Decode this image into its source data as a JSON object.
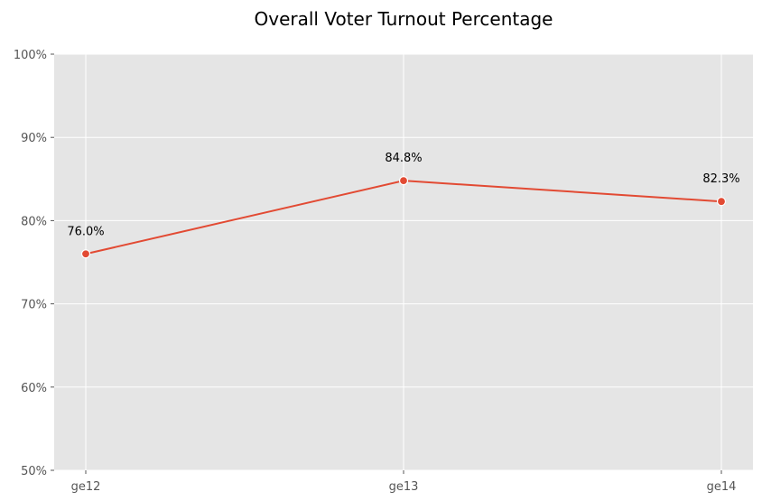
{
  "chart_data": {
    "type": "line",
    "title": "Overall Voter Turnout Percentage",
    "xlabel": "",
    "ylabel": "",
    "categories": [
      "ge12",
      "ge13",
      "ge14"
    ],
    "series": [
      {
        "values": [
          76.0,
          84.8,
          82.3
        ],
        "labels": [
          "76.0%",
          "84.8%",
          "82.3%"
        ],
        "color": "#E24A33"
      }
    ],
    "ylim": [
      50,
      100
    ],
    "yticks": [
      50,
      60,
      70,
      80,
      90,
      100
    ],
    "ytick_labels": [
      "50%",
      "60%",
      "70%",
      "80%",
      "90%",
      "100%"
    ],
    "grid": true,
    "legend": "none",
    "colors": {
      "plot_background": "#E5E5E5",
      "grid": "#FFFFFF",
      "line": "#E24A33"
    }
  }
}
